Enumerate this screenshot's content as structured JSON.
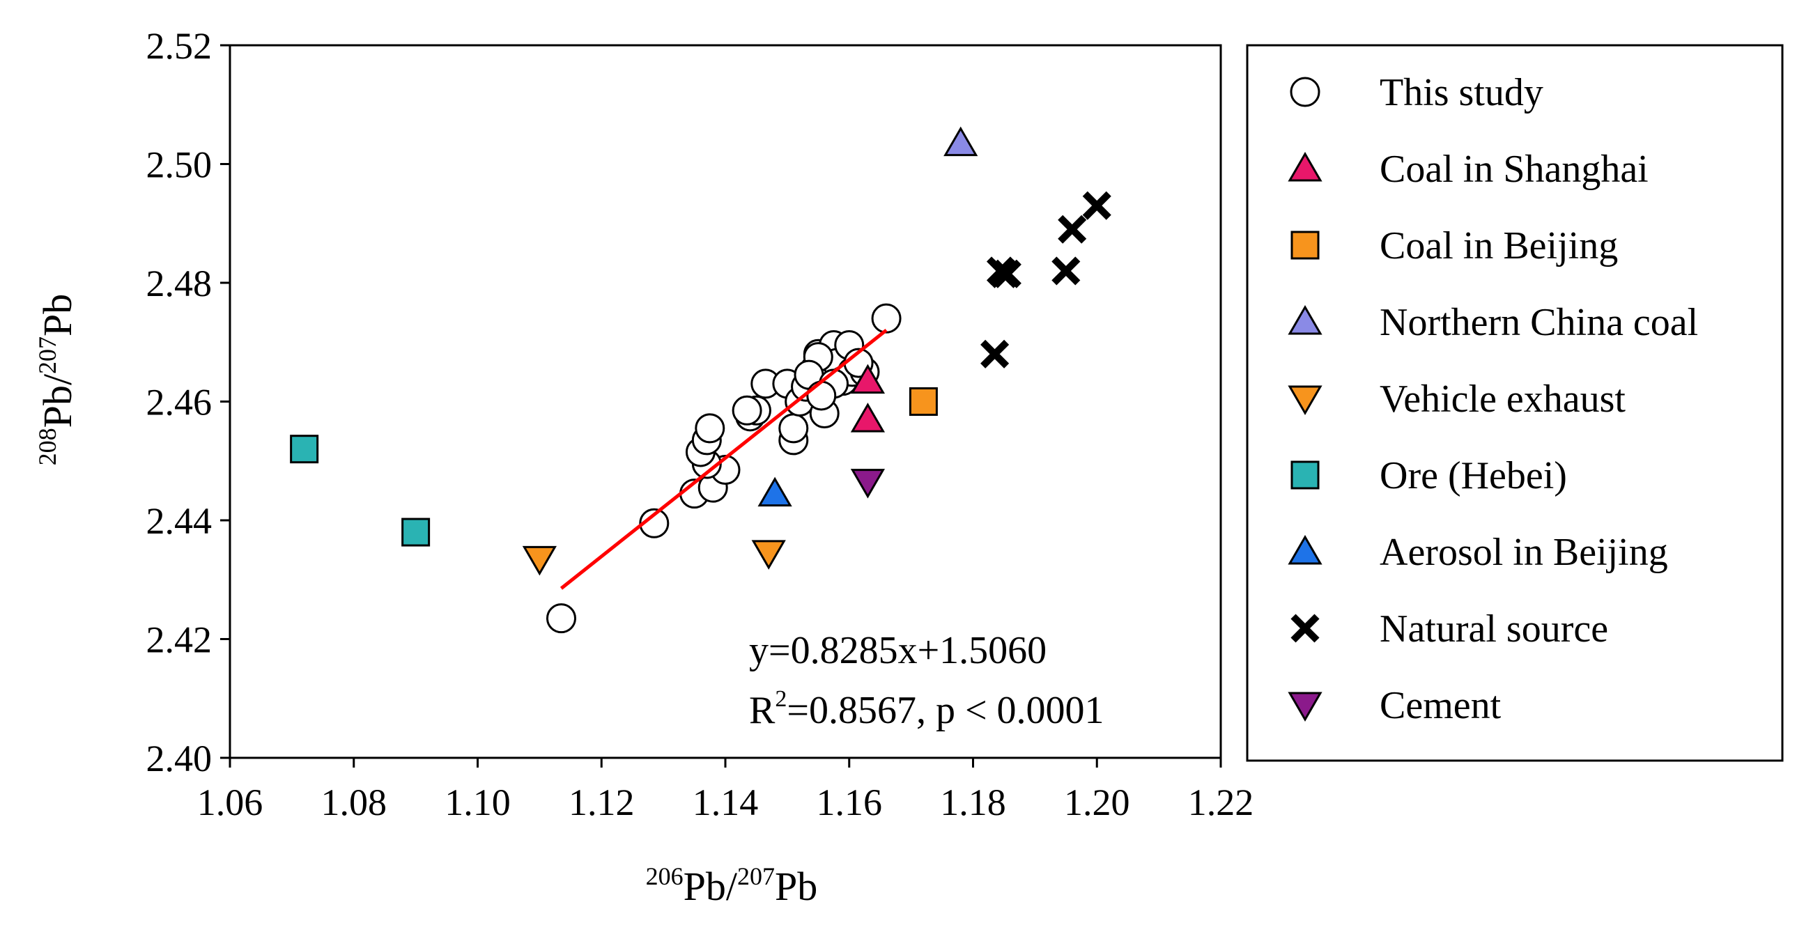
{
  "chart_data": {
    "type": "scatter",
    "xlabel": {
      "sup1": "206",
      "base1": "Pb/",
      "sup2": "207",
      "base2": "Pb"
    },
    "ylabel": {
      "sup1": "208",
      "base1": "Pb/",
      "sup2": "207",
      "base2": "Pb"
    },
    "xlim": [
      1.06,
      1.22
    ],
    "ylim": [
      2.4,
      2.52
    ],
    "xticks": [
      "1.06",
      "1.08",
      "1.10",
      "1.12",
      "1.14",
      "1.16",
      "1.18",
      "1.20",
      "1.22"
    ],
    "yticks": [
      "2.40",
      "2.42",
      "2.44",
      "2.46",
      "2.48",
      "2.50",
      "2.52"
    ],
    "grid": false,
    "legend_position": "right-outside",
    "series": [
      {
        "name": "This study",
        "marker": "circle",
        "color": "#ffffff",
        "points": [
          [
            1.1135,
            2.4235
          ],
          [
            1.1285,
            2.4395
          ],
          [
            1.135,
            2.4445
          ],
          [
            1.138,
            2.4455
          ],
          [
            1.14,
            2.4485
          ],
          [
            1.137,
            2.4495
          ],
          [
            1.136,
            2.4515
          ],
          [
            1.137,
            2.4535
          ],
          [
            1.1375,
            2.4555
          ],
          [
            1.144,
            2.4575
          ],
          [
            1.145,
            2.4585
          ],
          [
            1.1435,
            2.4585
          ],
          [
            1.1465,
            2.463
          ],
          [
            1.15,
            2.463
          ],
          [
            1.151,
            2.4535
          ],
          [
            1.151,
            2.4555
          ],
          [
            1.152,
            2.46
          ],
          [
            1.153,
            2.4625
          ],
          [
            1.1545,
            2.4655
          ],
          [
            1.156,
            2.458
          ],
          [
            1.155,
            2.468
          ],
          [
            1.1575,
            2.4695
          ],
          [
            1.158,
            2.4665
          ],
          [
            1.159,
            2.4635
          ],
          [
            1.16,
            2.4695
          ],
          [
            1.1605,
            2.465
          ],
          [
            1.1625,
            2.465
          ],
          [
            1.1615,
            2.4665
          ],
          [
            1.166,
            2.474
          ],
          [
            1.155,
            2.4675
          ],
          [
            1.1535,
            2.4645
          ],
          [
            1.1575,
            2.463
          ],
          [
            1.1555,
            2.461
          ]
        ]
      },
      {
        "name": "Coal in Shanghai",
        "marker": "triangle-up",
        "color": "#e8176a",
        "points": [
          [
            1.163,
            2.4635
          ],
          [
            1.163,
            2.457
          ]
        ]
      },
      {
        "name": "Coal in Beijing",
        "marker": "square",
        "color": "#f7941d",
        "points": [
          [
            1.172,
            2.46
          ]
        ]
      },
      {
        "name": "Northern China coal",
        "marker": "triangle-up",
        "color": "#8a8ae6",
        "points": [
          [
            1.178,
            2.5035
          ]
        ]
      },
      {
        "name": "Vehicle exhaust",
        "marker": "triangle-down",
        "color": "#f7941d",
        "points": [
          [
            1.11,
            2.4335
          ],
          [
            1.147,
            2.4345
          ]
        ]
      },
      {
        "name": "Ore (Hebei)",
        "marker": "square",
        "color": "#2ab3b3",
        "points": [
          [
            1.072,
            2.452
          ],
          [
            1.09,
            2.438
          ]
        ]
      },
      {
        "name": "Aerosol in Beijing",
        "marker": "triangle-up",
        "color": "#1e73e8",
        "points": [
          [
            1.148,
            2.4445
          ]
        ]
      },
      {
        "name": "Natural source",
        "marker": "x",
        "color": "#000000",
        "points": [
          [
            1.1835,
            2.468
          ],
          [
            1.185,
            2.4815
          ],
          [
            1.1845,
            2.482
          ],
          [
            1.1855,
            2.4815
          ],
          [
            1.195,
            2.482
          ],
          [
            1.196,
            2.489
          ],
          [
            1.2,
            2.493
          ]
        ]
      },
      {
        "name": "Cement",
        "marker": "triangle-down",
        "color": "#8b1a8b",
        "points": [
          [
            1.163,
            2.4465
          ]
        ]
      }
    ],
    "fit_line": {
      "slope": 0.8285,
      "intercept": 1.506,
      "x_range": [
        1.1135,
        1.166
      ],
      "color": "#ff0000"
    },
    "annotation": {
      "equation": "y=0.8285x+1.5060",
      "r2_prefix": "R",
      "r2_sup": "2",
      "r2_rest": "=0.8567, p < 0.0001"
    }
  }
}
